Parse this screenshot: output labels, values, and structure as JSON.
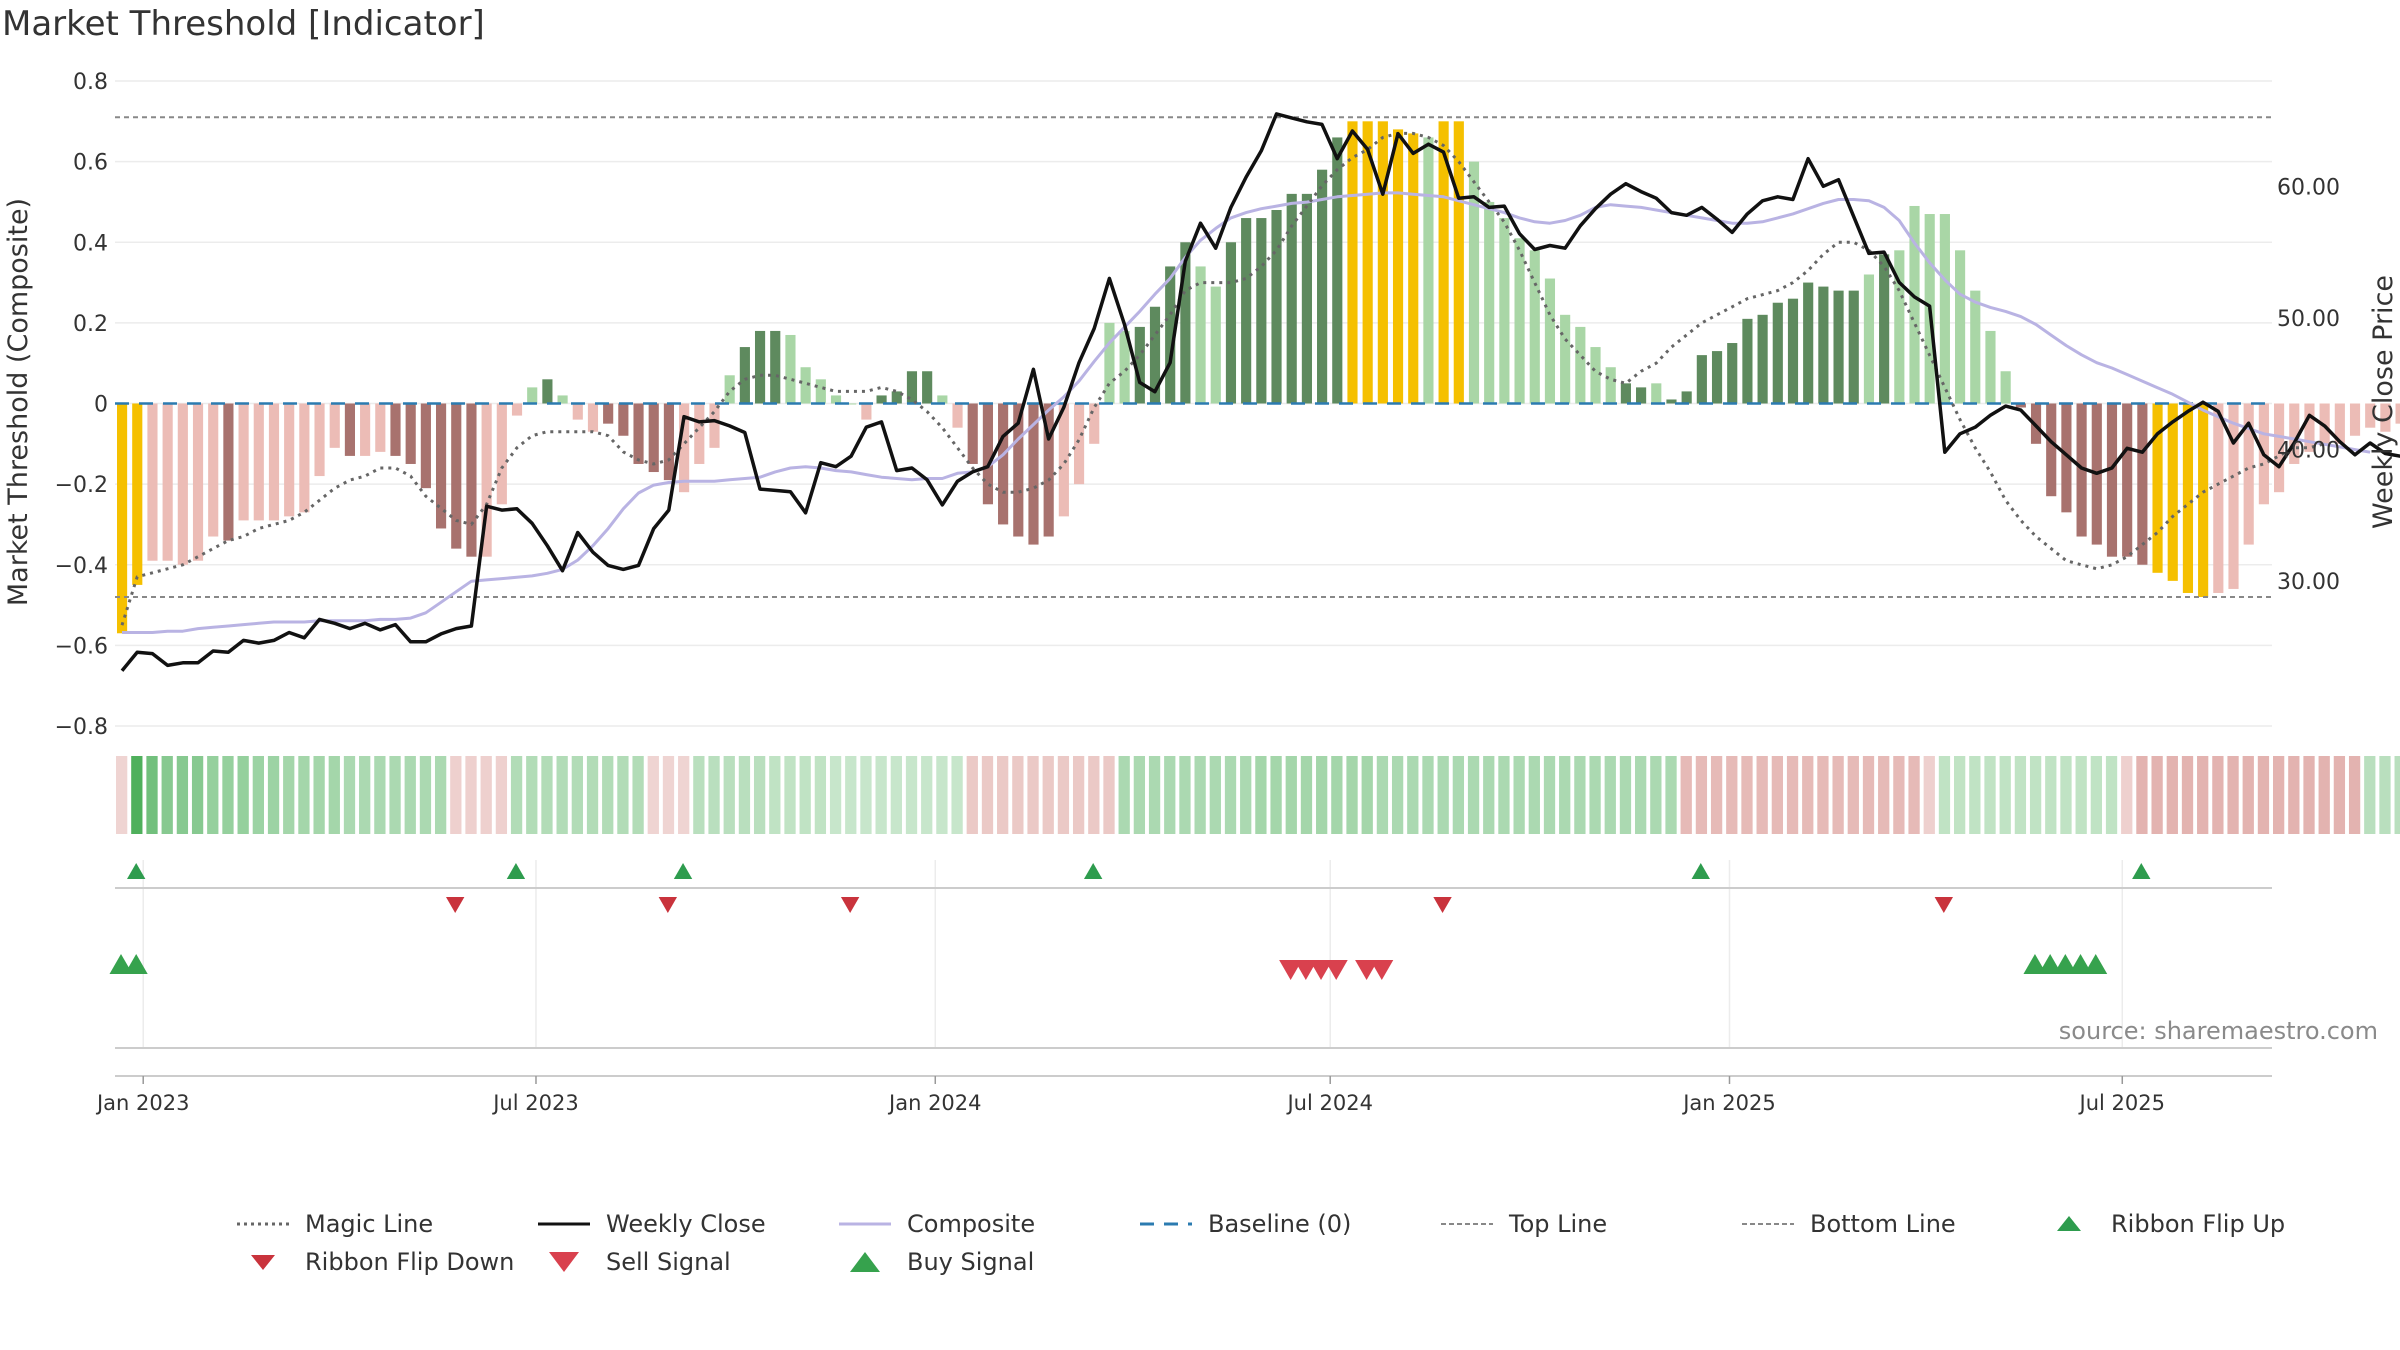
{
  "title": "Market Threshold [Indicator]",
  "source_text": "source: sharemaestro.com",
  "colors": {
    "gold": "#f5c000",
    "dark_green": "#5e8a5e",
    "light_green": "#a9d6a6",
    "dark_red": "#a8726e",
    "light_red": "#ecbcb6",
    "magic_line": "#666666",
    "weekly_close": "#111111",
    "composite": "#b9b3e3",
    "baseline": "#2b7bb0",
    "ref_lines": "#888888",
    "flip_up": "#2e9c4e",
    "flip_down": "#c9333c",
    "sell": "#d9414e",
    "buy": "#36a24d"
  },
  "legend": [
    {
      "label": "Magic Line",
      "icon": "dotted-line"
    },
    {
      "label": "Weekly Close",
      "icon": "solid-line"
    },
    {
      "label": "Composite",
      "icon": "solid-line"
    },
    {
      "label": "Baseline (0)",
      "icon": "dashed-line"
    },
    {
      "label": "Top Line",
      "icon": "dotted-line"
    },
    {
      "label": "Bottom Line",
      "icon": "dotted-line"
    },
    {
      "label": "Ribbon Flip Up",
      "icon": "triangle-up"
    },
    {
      "label": "Ribbon Flip Down",
      "icon": "triangle-down"
    },
    {
      "label": "Sell Signal",
      "icon": "triangle-down"
    },
    {
      "label": "Buy Signal",
      "icon": "triangle-up"
    }
  ],
  "chart_data": {
    "type": "bar",
    "ylabel": "Market Threshold (Composite)",
    "y2label": "Weekly Close Price",
    "ylim": [
      -0.8,
      0.8
    ],
    "y2lim": [
      19,
      68
    ],
    "yticks": [
      0.8,
      0.6,
      0.4,
      0.2,
      0,
      -0.2,
      -0.4,
      -0.6,
      -0.8
    ],
    "ytick_labels": [
      "0.8",
      "0.6",
      "0.4",
      "0.2",
      "0",
      "−0.2",
      "−0.4",
      "−0.6",
      "−0.8"
    ],
    "y2ticks": [
      60,
      50,
      40,
      30
    ],
    "y2tick_labels": [
      "60.00",
      "50.00",
      "40.00",
      "30.00"
    ],
    "xlim": [
      "2022-12-19",
      "2025-09-08"
    ],
    "xticks": [
      {
        "date": "2023-01-01",
        "label": "Jan 2023"
      },
      {
        "date": "2023-07-01",
        "label": "Jul 2023"
      },
      {
        "date": "2024-01-01",
        "label": "Jan 2024"
      },
      {
        "date": "2024-07-01",
        "label": "Jul 2024"
      },
      {
        "date": "2025-01-01",
        "label": "Jan 2025"
      },
      {
        "date": "2025-07-01",
        "label": "Jul 2025"
      }
    ],
    "top_line": 0.71,
    "bottom_line": -0.48,
    "baseline": 0,
    "start_date": "2022-12-19",
    "frequency": "weekly",
    "composite_bars": [
      -0.57,
      -0.45,
      -0.39,
      -0.39,
      -0.4,
      -0.39,
      -0.33,
      -0.34,
      -0.29,
      -0.29,
      -0.29,
      -0.28,
      -0.27,
      -0.18,
      -0.11,
      -0.13,
      -0.13,
      -0.12,
      -0.13,
      -0.15,
      -0.21,
      -0.31,
      -0.36,
      -0.38,
      -0.38,
      -0.25,
      -0.03,
      0.04,
      0.06,
      0.02,
      -0.04,
      -0.07,
      -0.05,
      -0.08,
      -0.15,
      -0.17,
      -0.19,
      -0.22,
      -0.15,
      -0.11,
      0.07,
      0.14,
      0.18,
      0.18,
      0.17,
      0.09,
      0.06,
      0.02,
      0.0,
      -0.04,
      0.02,
      0.03,
      0.08,
      0.08,
      0.02,
      -0.06,
      -0.15,
      -0.25,
      -0.3,
      -0.33,
      -0.35,
      -0.33,
      -0.28,
      -0.2,
      -0.1,
      0.2,
      0.18,
      0.19,
      0.24,
      0.34,
      0.4,
      0.34,
      0.29,
      0.4,
      0.46,
      0.46,
      0.48,
      0.52,
      0.52,
      0.58,
      0.66,
      0.7,
      0.7,
      0.7,
      0.68,
      0.67,
      0.66,
      0.7,
      0.7,
      0.6,
      0.5,
      0.46,
      0.41,
      0.38,
      0.31,
      0.22,
      0.19,
      0.14,
      0.09,
      0.05,
      0.04,
      0.05,
      0.01,
      0.03,
      0.12,
      0.13,
      0.15,
      0.21,
      0.22,
      0.25,
      0.26,
      0.3,
      0.29,
      0.28,
      0.28,
      0.32,
      0.37,
      0.38,
      0.49,
      0.47,
      0.47,
      0.38,
      0.28,
      0.18,
      0.08,
      -0.01,
      -0.1,
      -0.23,
      -0.27,
      -0.33,
      -0.35,
      -0.38,
      -0.38,
      -0.4,
      -0.42,
      -0.44,
      -0.47,
      -0.48,
      -0.47,
      -0.46,
      -0.35,
      -0.25,
      -0.22,
      -0.15,
      -0.12,
      -0.1,
      -0.1,
      -0.08,
      -0.06,
      -0.07,
      -0.05,
      -0.06,
      -0.07
    ],
    "bar_color_codes": [
      "G",
      "G",
      "L",
      "L",
      "L",
      "L",
      "L",
      "D",
      "L",
      "L",
      "L",
      "L",
      "L",
      "L",
      "L",
      "D",
      "L",
      "L",
      "D",
      "D",
      "D",
      "D",
      "D",
      "D",
      "L",
      "L",
      "L",
      "L",
      "D",
      "L",
      "L",
      "L",
      "D",
      "D",
      "D",
      "D",
      "D",
      "L",
      "L",
      "L",
      "L",
      "D",
      "D",
      "D",
      "L",
      "L",
      "L",
      "L",
      "L",
      "L",
      "D",
      "D",
      "D",
      "D",
      "L",
      "L",
      "D",
      "D",
      "D",
      "D",
      "D",
      "D",
      "L",
      "L",
      "L",
      "L",
      "L",
      "D",
      "D",
      "D",
      "D",
      "L",
      "L",
      "D",
      "D",
      "D",
      "D",
      "D",
      "D",
      "D",
      "D",
      "G",
      "G",
      "G",
      "G",
      "G",
      "L",
      "G",
      "G",
      "L",
      "L",
      "L",
      "L",
      "L",
      "L",
      "L",
      "L",
      "L",
      "L",
      "D",
      "D",
      "L",
      "D",
      "D",
      "D",
      "D",
      "D",
      "D",
      "D",
      "D",
      "D",
      "D",
      "D",
      "D",
      "D",
      "L",
      "D",
      "L",
      "L",
      "L",
      "L",
      "L",
      "L",
      "L",
      "L",
      "D",
      "D",
      "D",
      "D",
      "D",
      "D",
      "D",
      "D",
      "D",
      "G",
      "G",
      "G",
      "G",
      "L",
      "L",
      "L",
      "L",
      "L",
      "L",
      "L",
      "L",
      "L",
      "L",
      "L",
      "L",
      "L",
      "L",
      "D"
    ],
    "series": [
      {
        "name": "Weekly Close",
        "values": [
          23.2,
          24.6,
          24.5,
          23.6,
          23.8,
          23.8,
          24.7,
          24.6,
          25.5,
          25.3,
          25.5,
          26.1,
          25.7,
          27.1,
          26.8,
          26.4,
          26.8,
          26.3,
          26.7,
          25.4,
          25.4,
          26.0,
          26.4,
          26.6,
          35.7,
          35.4,
          35.5,
          34.4,
          32.7,
          30.8,
          33.7,
          32.2,
          31.2,
          30.9,
          31.2,
          34.0,
          35.4,
          42.5,
          42.1,
          42.2,
          41.8,
          41.3,
          37.0,
          36.9,
          36.8,
          35.2,
          39.0,
          38.7,
          39.5,
          41.7,
          42.1,
          38.4,
          38.6,
          37.7,
          35.8,
          37.6,
          38.3,
          38.7,
          41.0,
          42.0,
          46.1,
          40.8,
          43.2,
          46.6,
          49.2,
          53.0,
          49.5,
          45.1,
          44.4,
          46.6,
          54.3,
          57.2,
          55.3,
          58.4,
          60.7,
          62.7,
          65.5,
          65.2,
          64.9,
          64.7,
          62.1,
          64.2,
          62.8,
          59.4,
          64.0,
          62.5,
          63.2,
          62.6,
          59.1,
          59.2,
          58.4,
          58.5,
          56.4,
          55.2,
          55.5,
          55.3,
          57.0,
          58.3,
          59.4,
          60.2,
          59.6,
          59.1,
          58.0,
          57.8,
          58.4,
          57.5,
          56.5,
          57.9,
          58.9,
          59.2,
          59.0,
          62.1,
          60.0,
          60.5,
          57.7,
          54.9,
          55.0,
          52.7,
          51.6,
          50.9,
          39.8,
          41.2,
          41.7,
          42.6,
          43.3,
          43.0,
          41.8,
          40.6,
          39.6,
          38.6,
          38.2,
          38.6,
          40.1,
          39.8,
          41.2,
          42.1,
          42.9,
          43.6,
          42.9,
          40.5,
          42.0,
          39.6,
          38.7,
          40.5,
          42.6,
          41.8,
          40.6,
          39.6,
          40.5,
          39.7,
          39.5
        ]
      },
      {
        "name": "Composite",
        "values": [
          26.1,
          26.1,
          26.1,
          26.2,
          26.2,
          26.4,
          26.5,
          26.6,
          26.7,
          26.8,
          26.9,
          26.9,
          26.9,
          27.0,
          27.0,
          27.0,
          27.0,
          27.1,
          27.1,
          27.2,
          27.6,
          28.4,
          29.2,
          30.0,
          30.1,
          30.2,
          30.3,
          30.4,
          30.6,
          30.9,
          31.6,
          32.7,
          34.0,
          35.5,
          36.7,
          37.3,
          37.5,
          37.6,
          37.6,
          37.6,
          37.7,
          37.8,
          37.9,
          38.3,
          38.6,
          38.7,
          38.6,
          38.4,
          38.3,
          38.1,
          37.9,
          37.8,
          37.7,
          37.8,
          37.8,
          38.2,
          38.3,
          38.7,
          39.6,
          40.8,
          41.9,
          43.0,
          44.0,
          45.2,
          46.7,
          48.1,
          49.3,
          50.5,
          51.8,
          53.0,
          54.6,
          55.9,
          56.8,
          57.6,
          58.0,
          58.3,
          58.5,
          58.7,
          58.8,
          59.0,
          59.2,
          59.3,
          59.4,
          59.5,
          59.5,
          59.4,
          59.3,
          59.2,
          58.9,
          58.6,
          58.3,
          58.0,
          57.6,
          57.3,
          57.2,
          57.4,
          57.8,
          58.4,
          58.6,
          58.5,
          58.4,
          58.2,
          58.0,
          57.8,
          57.6,
          57.4,
          57.2,
          57.2,
          57.3,
          57.6,
          57.9,
          58.3,
          58.7,
          59.0,
          59.0,
          58.9,
          58.4,
          57.4,
          55.7,
          54.2,
          52.9,
          51.8,
          51.2,
          50.8,
          50.5,
          50.1,
          49.5,
          48.7,
          47.9,
          47.2,
          46.6,
          46.2,
          45.7,
          45.2,
          44.7,
          44.2,
          43.6,
          43.0,
          42.5,
          42.0,
          41.6,
          41.2,
          41.0,
          40.8,
          40.6,
          40.4,
          40.2,
          40.0,
          39.8
        ]
      },
      {
        "name": "Magic Line",
        "values": [
          -0.55,
          -0.43,
          -0.42,
          -0.41,
          -0.4,
          -0.38,
          -0.36,
          -0.34,
          -0.33,
          -0.31,
          -0.3,
          -0.29,
          -0.27,
          -0.24,
          -0.21,
          -0.19,
          -0.18,
          -0.16,
          -0.16,
          -0.18,
          -0.23,
          -0.26,
          -0.29,
          -0.3,
          -0.25,
          -0.16,
          -0.11,
          -0.08,
          -0.07,
          -0.07,
          -0.07,
          -0.07,
          -0.08,
          -0.12,
          -0.14,
          -0.15,
          -0.14,
          -0.1,
          -0.06,
          -0.02,
          0.03,
          0.06,
          0.07,
          0.07,
          0.06,
          0.05,
          0.04,
          0.03,
          0.03,
          0.03,
          0.04,
          0.03,
          0.01,
          -0.02,
          -0.06,
          -0.11,
          -0.16,
          -0.2,
          -0.22,
          -0.22,
          -0.21,
          -0.19,
          -0.15,
          -0.09,
          -0.01,
          0.05,
          0.08,
          0.12,
          0.17,
          0.22,
          0.28,
          0.3,
          0.3,
          0.3,
          0.31,
          0.34,
          0.38,
          0.44,
          0.49,
          0.54,
          0.58,
          0.61,
          0.63,
          0.66,
          0.67,
          0.67,
          0.66,
          0.64,
          0.6,
          0.55,
          0.5,
          0.45,
          0.38,
          0.3,
          0.22,
          0.16,
          0.12,
          0.08,
          0.06,
          0.05,
          0.08,
          0.1,
          0.14,
          0.17,
          0.2,
          0.22,
          0.24,
          0.26,
          0.27,
          0.28,
          0.3,
          0.33,
          0.37,
          0.4,
          0.4,
          0.38,
          0.34,
          0.28,
          0.2,
          0.12,
          0.04,
          -0.04,
          -0.11,
          -0.17,
          -0.24,
          -0.29,
          -0.33,
          -0.36,
          -0.39,
          -0.4,
          -0.41,
          -0.4,
          -0.38,
          -0.35,
          -0.32,
          -0.28,
          -0.25,
          -0.22,
          -0.2,
          -0.18,
          -0.16,
          -0.15,
          -0.13,
          -0.11,
          -0.11,
          -0.1
        ]
      }
    ],
    "ribbon_levels": [
      -0.2,
      2.0,
      1.5,
      1.2,
      1.2,
      1.2,
      1.0,
      1.0,
      1.0,
      0.9,
      0.9,
      0.8,
      0.8,
      0.8,
      0.8,
      0.7,
      0.7,
      0.7,
      0.7,
      0.7,
      0.7,
      0.7,
      -0.3,
      -0.3,
      -0.3,
      -0.3,
      0.6,
      0.6,
      0.6,
      0.6,
      0.6,
      0.6,
      0.6,
      0.6,
      0.6,
      -0.2,
      -0.2,
      -0.2,
      0.5,
      0.5,
      0.5,
      0.5,
      0.5,
      0.4,
      0.4,
      0.4,
      0.4,
      0.3,
      0.3,
      0.3,
      0.3,
      0.3,
      0.3,
      0.3,
      0.3,
      0.3,
      -0.5,
      -0.5,
      -0.5,
      -0.5,
      -0.5,
      -0.5,
      -0.5,
      -0.5,
      -0.5,
      -0.5,
      0.7,
      0.7,
      0.7,
      0.7,
      0.7,
      0.7,
      0.7,
      0.7,
      0.7,
      0.8,
      0.8,
      0.8,
      0.8,
      0.8,
      0.8,
      0.8,
      0.8,
      0.7,
      0.7,
      0.7,
      0.7,
      0.7,
      0.7,
      0.7,
      0.7,
      0.7,
      0.7,
      0.7,
      0.7,
      0.7,
      0.7,
      0.7,
      0.7,
      0.7,
      0.7,
      0.7,
      0.7,
      -0.9,
      -0.9,
      -0.9,
      -0.9,
      -0.9,
      -0.9,
      -0.9,
      -0.9,
      -0.9,
      -0.9,
      -0.9,
      -0.9,
      -0.9,
      -0.9,
      -0.9,
      -0.9,
      -0.3,
      0.4,
      0.4,
      0.4,
      0.4,
      0.4,
      0.4,
      0.4,
      0.4,
      0.4,
      0.4,
      0.4,
      0.4,
      -0.3,
      -1.1,
      -1.1,
      -1.1,
      -1.1,
      -1.1,
      -1.1,
      -1.1,
      -1.1,
      -1.1,
      -1.1,
      -1.1,
      -1.1,
      -1.1,
      -1.1,
      -1.1,
      0.5,
      0.5,
      0.5,
      0.5,
      0.5,
      0.5,
      0.5,
      0.5,
      0.5,
      0.5,
      0.5,
      0.5,
      0.5,
      0.5
    ],
    "ribbon_flip_up": [
      "2022-12-26",
      "2023-06-19",
      "2023-09-04",
      "2024-03-11",
      "2024-12-16",
      "2025-07-07"
    ],
    "ribbon_flip_down": [
      "2023-05-22",
      "2023-08-28",
      "2023-11-20",
      "2024-08-19",
      "2025-04-07"
    ],
    "buy_signals": [
      "2022-12-19",
      "2022-12-26"
    ],
    "sell_signals": [
      "2024-06-10",
      "2024-06-17",
      "2024-06-24",
      "2024-07-01",
      "2024-07-15",
      "2024-07-22"
    ],
    "buy_signals_2025": [
      "2025-05-19",
      "2025-05-26",
      "2025-06-02",
      "2025-06-09",
      "2025-06-16"
    ]
  }
}
